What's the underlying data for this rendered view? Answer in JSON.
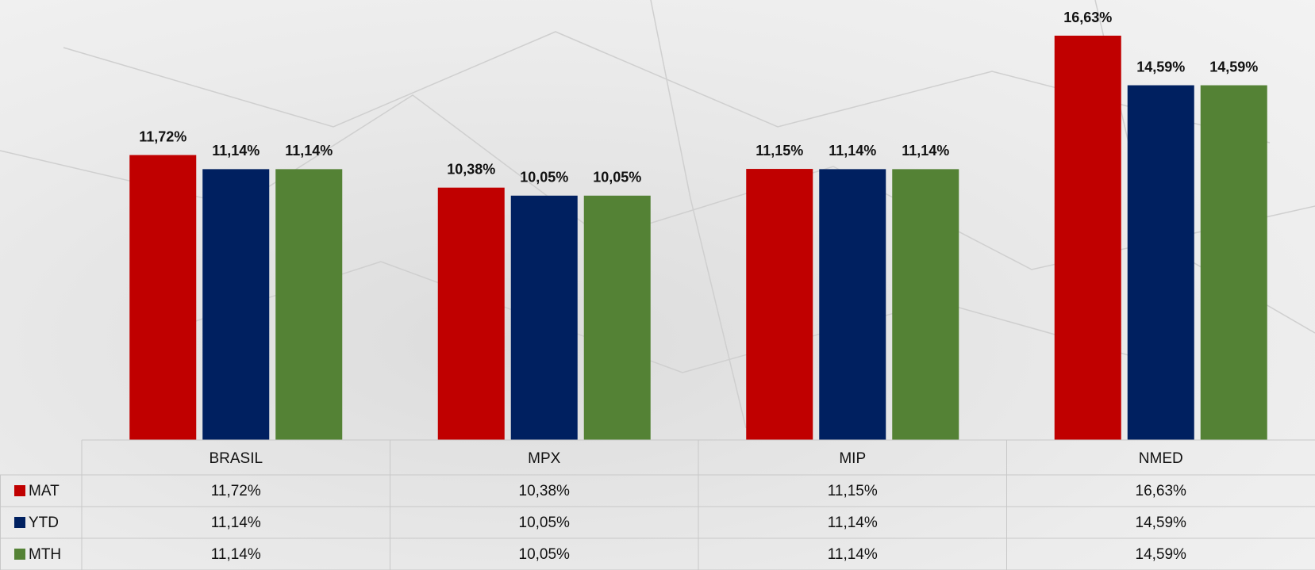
{
  "chart_data": {
    "type": "bar",
    "categories": [
      "BRASIL",
      "MPX",
      "MIP",
      "NMED"
    ],
    "series": [
      {
        "name": "MAT",
        "color": "#c00000",
        "values": [
          11.72,
          10.38,
          11.15,
          16.63
        ],
        "value_labels": [
          "11,72%",
          "10,38%",
          "11,15%",
          "16,63%"
        ]
      },
      {
        "name": "YTD",
        "color": "#002060",
        "values": [
          11.14,
          10.05,
          11.14,
          14.59
        ],
        "value_labels": [
          "11,14%",
          "10,05%",
          "11,14%",
          "14,59%"
        ]
      },
      {
        "name": "MTH",
        "color": "#548235",
        "values": [
          11.14,
          10.05,
          11.14,
          14.59
        ],
        "value_labels": [
          "11,14%",
          "10,05%",
          "11,14%",
          "14,59%"
        ]
      }
    ]
  }
}
